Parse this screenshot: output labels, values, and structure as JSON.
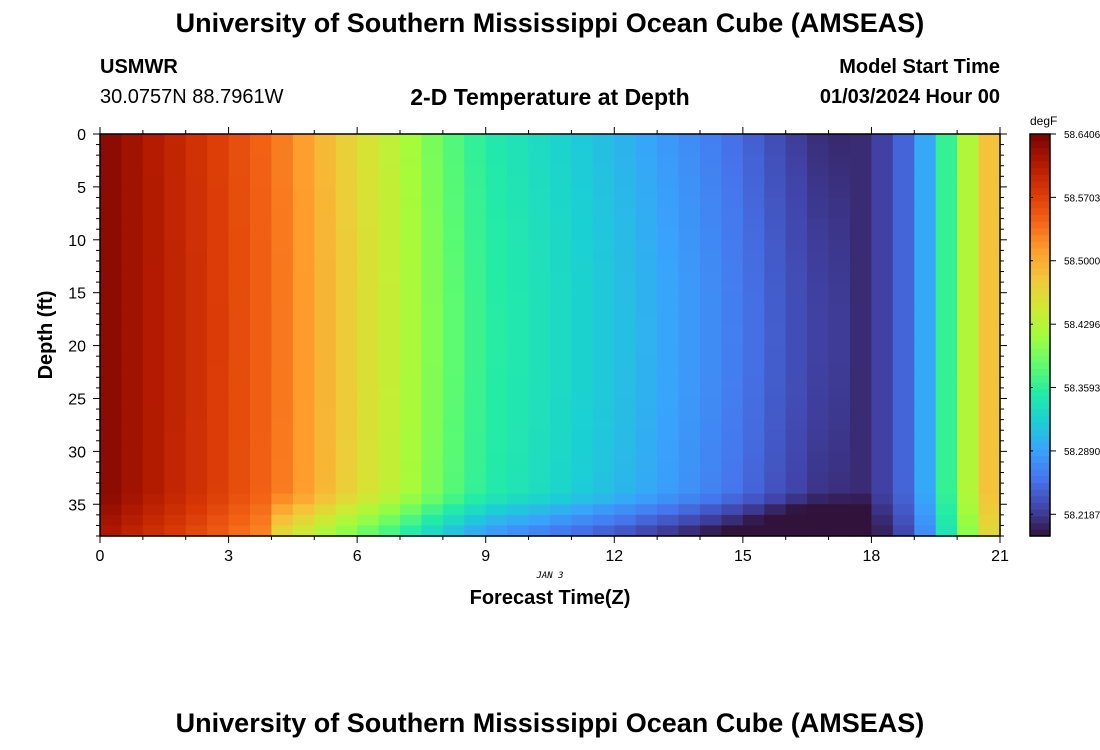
{
  "header": {
    "title": "University of Southern Mississippi Ocean Cube (AMSEAS)",
    "station": "USMWR",
    "coords": "30.0757N  88.7961W",
    "plot_title": "2-D Temperature at Depth",
    "model_start_label": "Model Start Time",
    "model_start_value": "01/03/2024 Hour 00"
  },
  "footer": {
    "title": "University of Southern Mississippi Ocean Cube (AMSEAS)"
  },
  "chart_data": {
    "type": "heatmap",
    "title": "2-D Temperature at Depth",
    "xlabel": "Forecast Time(Z)",
    "ylabel": "Depth (ft)",
    "date_label": "JAN 3",
    "xlim": [
      0,
      21
    ],
    "ylim": [
      0,
      38
    ],
    "y_inverted": true,
    "x_ticks": [
      0,
      3,
      6,
      9,
      12,
      15,
      18,
      21
    ],
    "y_ticks": [
      0,
      5,
      10,
      15,
      20,
      25,
      30,
      35
    ],
    "colorbar": {
      "unit": "degF",
      "min": 58.1946,
      "max": 58.6406,
      "tick_values": [
        58.6406,
        58.5703,
        58.5,
        58.4296,
        58.3593,
        58.289,
        58.2187
      ],
      "tick_labels": [
        "58.6406",
        "58.5703",
        "58.5000",
        "58.4296",
        "58.3593",
        "58.2890",
        "58.2187"
      ],
      "colors": [
        "#30123b",
        "#4145ab",
        "#4675ed",
        "#39a2fc",
        "#1bcfd4",
        "#24eca6",
        "#61fc6c",
        "#a4fc3b",
        "#d1e834",
        "#f3c63a",
        "#fe9b2d",
        "#f36315",
        "#d93806",
        "#b11901",
        "#7a0402"
      ]
    },
    "surface_temperature_by_hour": [
      {
        "hour": 0,
        "value": 58.636
      },
      {
        "hour": 1,
        "value": 58.612
      },
      {
        "hour": 2,
        "value": 58.59
      },
      {
        "hour": 3,
        "value": 58.566
      },
      {
        "hour": 4,
        "value": 58.54
      },
      {
        "hour": 5,
        "value": 58.5
      },
      {
        "hour": 6,
        "value": 58.462
      },
      {
        "hour": 7,
        "value": 58.428
      },
      {
        "hour": 8,
        "value": 58.386
      },
      {
        "hour": 9,
        "value": 58.352
      },
      {
        "hour": 10,
        "value": 58.338
      },
      {
        "hour": 11,
        "value": 58.322
      },
      {
        "hour": 12,
        "value": 58.306
      },
      {
        "hour": 13,
        "value": 58.288
      },
      {
        "hour": 14,
        "value": 58.27
      },
      {
        "hour": 15,
        "value": 58.25
      },
      {
        "hour": 16,
        "value": 58.226
      },
      {
        "hour": 17,
        "value": 58.208
      },
      {
        "hour": 18,
        "value": 58.212
      },
      {
        "hour": 19,
        "value": 58.26
      },
      {
        "hour": 20,
        "value": 58.398
      },
      {
        "hour": 21,
        "value": 58.512
      }
    ]
  }
}
